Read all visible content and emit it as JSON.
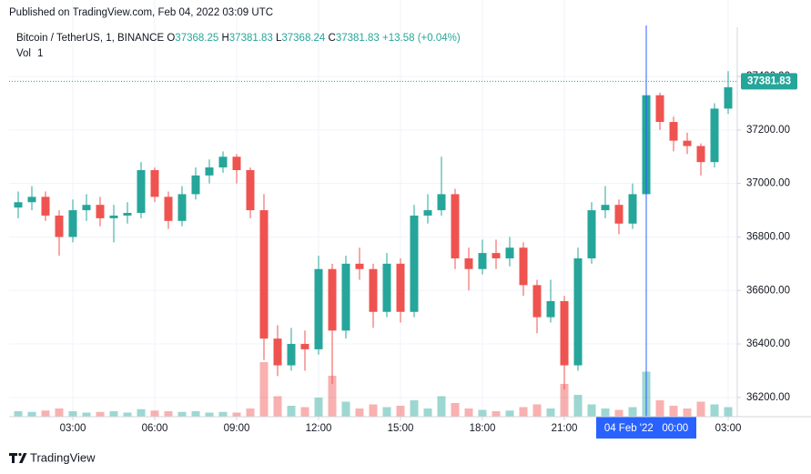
{
  "header": {
    "published": "Published on TradingView.com, Feb 04, 2022 03:09 UTC"
  },
  "chart_data": {
    "type": "candlestick",
    "symbol": "Bitcoin / TetherUS, 1, BINANCE",
    "ohlc_legend": [
      {
        "label": "O",
        "value": 37368.25
      },
      {
        "label": "H",
        "value": 37381.83
      },
      {
        "label": "L",
        "value": 37368.24
      },
      {
        "label": "C",
        "value": 37381.83
      }
    ],
    "change": "+13.58 (+0.04%)",
    "volume_label": "Vol",
    "volume_legend": 1,
    "x": [
      1,
      1.5,
      2,
      2.5,
      3,
      3.5,
      4,
      4.5,
      5,
      5.5,
      6,
      6.5,
      7,
      7.5,
      8,
      8.5,
      9,
      9.5,
      10,
      10.5,
      11,
      11.5,
      12,
      12.5,
      13,
      13.5,
      14,
      14.5,
      15,
      15.5,
      16,
      16.5,
      17,
      17.5,
      18,
      18.5,
      19,
      19.5,
      20,
      20.5,
      21,
      21.5,
      22,
      22.5,
      23,
      23.5,
      24,
      24.5,
      25,
      25.5,
      26,
      26.5,
      27
    ],
    "open": [
      36910,
      36930,
      36950,
      36880,
      36800,
      36900,
      36920,
      36870,
      36880,
      36890,
      37050,
      36950,
      36860,
      36960,
      37030,
      37060,
      37100,
      37050,
      36900,
      36420,
      36320,
      36400,
      36380,
      36680,
      36450,
      36700,
      36680,
      36520,
      36700,
      36520,
      36880,
      36900,
      36960,
      36720,
      36680,
      36740,
      36720,
      36760,
      36620,
      36500,
      36560,
      36320,
      36720,
      36900,
      36920,
      36850,
      36960,
      37330,
      37230,
      37160,
      37140,
      37080,
      37280
    ],
    "high": [
      36970,
      36990,
      36970,
      36900,
      36940,
      36960,
      36950,
      36920,
      36930,
      37080,
      37060,
      36970,
      36990,
      37060,
      37090,
      37120,
      37110,
      37060,
      36960,
      36470,
      36460,
      36450,
      36730,
      36700,
      36730,
      36760,
      36700,
      36740,
      36720,
      36920,
      36960,
      37100,
      36980,
      36760,
      36790,
      36790,
      36800,
      36780,
      36640,
      36640,
      36580,
      36760,
      36930,
      36990,
      36940,
      37000,
      37420,
      37340,
      37250,
      37190,
      37150,
      37300,
      37420
    ],
    "low": [
      36870,
      36900,
      36860,
      36730,
      36780,
      36860,
      36840,
      36780,
      36850,
      36870,
      36930,
      36830,
      36840,
      36940,
      37000,
      37040,
      37000,
      36870,
      36340,
      36280,
      36300,
      36300,
      36360,
      36250,
      36420,
      36640,
      36460,
      36500,
      36480,
      36500,
      36850,
      36880,
      36680,
      36600,
      36660,
      36680,
      36690,
      36580,
      36440,
      36480,
      36230,
      36300,
      36700,
      36870,
      36810,
      36830,
      36950,
      37200,
      37120,
      37110,
      37030,
      37060,
      37260
    ],
    "close": [
      36930,
      36950,
      36880,
      36800,
      36900,
      36920,
      36870,
      36880,
      36890,
      37050,
      36950,
      36860,
      36960,
      37030,
      37060,
      37100,
      37050,
      36900,
      36420,
      36320,
      36400,
      36380,
      36680,
      36450,
      36700,
      36680,
      36520,
      36700,
      36520,
      36880,
      36900,
      36960,
      36720,
      36680,
      36740,
      36720,
      36760,
      36620,
      36500,
      36560,
      36320,
      36720,
      36900,
      36920,
      36850,
      36960,
      37330,
      37230,
      37160,
      37140,
      37080,
      37280,
      37360
    ],
    "volume": [
      40,
      35,
      45,
      60,
      40,
      30,
      35,
      40,
      30,
      55,
      45,
      40,
      35,
      40,
      30,
      35,
      30,
      60,
      400,
      150,
      80,
      70,
      140,
      300,
      110,
      60,
      90,
      70,
      80,
      120,
      60,
      150,
      100,
      60,
      50,
      40,
      45,
      70,
      90,
      60,
      240,
      160,
      90,
      60,
      50,
      70,
      330,
      120,
      80,
      60,
      110,
      90,
      70
    ],
    "vlim": [
      0,
      400
    ],
    "up_color": "#26a69a",
    "down_color": "#ef5350",
    "xlim": [
      0.667,
      27.333
    ],
    "xticks": [
      {
        "value": 3,
        "label": "03:00"
      },
      {
        "value": 6,
        "label": "06:00"
      },
      {
        "value": 9,
        "label": "09:00"
      },
      {
        "value": 12,
        "label": "12:00"
      },
      {
        "value": 15,
        "label": "15:00"
      },
      {
        "value": 18,
        "label": "18:00"
      },
      {
        "value": 21,
        "label": "21:00"
      },
      {
        "value": 27,
        "label": "03:00"
      }
    ],
    "ylim": [
      36128,
      37584
    ],
    "yticks": [
      {
        "value": 36200,
        "label": "36200.00"
      },
      {
        "value": 36400,
        "label": "36400.00"
      },
      {
        "value": 36600,
        "label": "36600.00"
      },
      {
        "value": 36800,
        "label": "36800.00"
      },
      {
        "value": 37000,
        "label": "37000.00"
      },
      {
        "value": 37200,
        "label": "37200.00"
      },
      {
        "value": 37400,
        "label": "37400.00"
      }
    ],
    "last_price": 37381.83,
    "crosshair": {
      "x": 24,
      "label": "04 Feb '22   00:00"
    },
    "grid": true
  },
  "footer": {
    "brand": "TradingView"
  }
}
